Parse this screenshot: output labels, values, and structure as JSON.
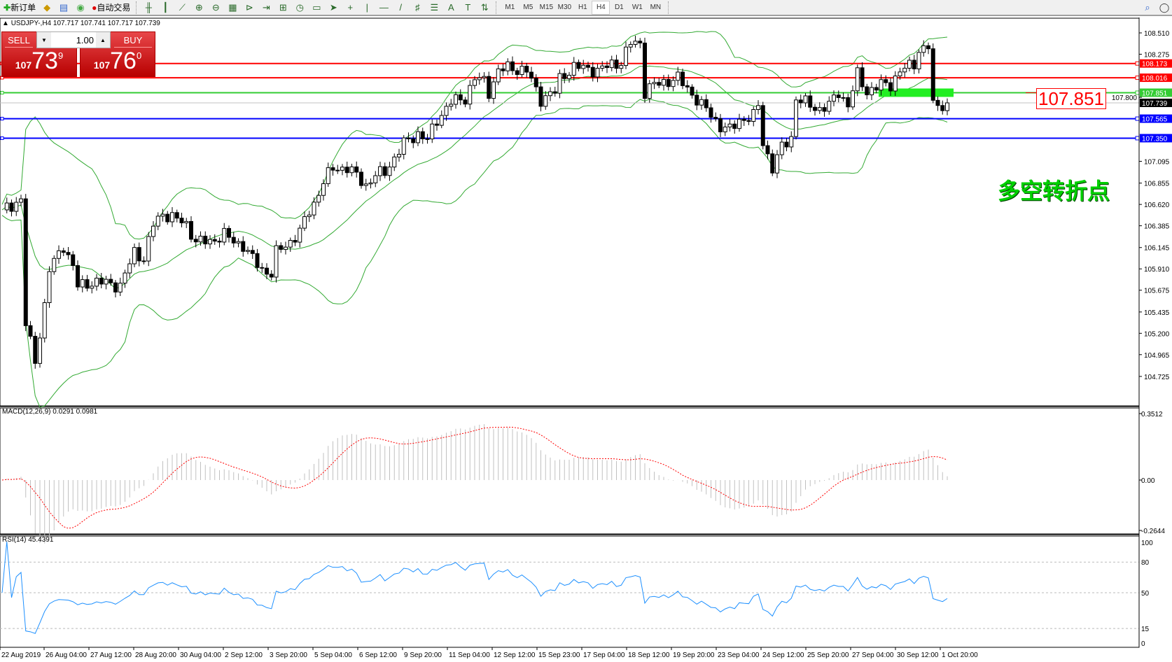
{
  "toolbar": {
    "new_order": "新订单",
    "auto_trading": "自动交易",
    "icons": [
      "bar-chart-icon",
      "candlestick-icon",
      "line-chart-icon",
      "zoom-in-icon",
      "zoom-out-icon",
      "tile-windows-icon",
      "chart-shift-icon",
      "autoscroll-icon",
      "indicators-icon",
      "periods-icon",
      "templates-icon",
      "cursor-icon",
      "crosshair-icon",
      "vertical-line-icon",
      "horizontal-line-icon",
      "trendline-icon",
      "fibonacci-icon",
      "fibo-fan-icon",
      "text-icon",
      "text-label-icon",
      "arrows-icon"
    ],
    "timeframes": [
      "M1",
      "M5",
      "M15",
      "M30",
      "H1",
      "H4",
      "D1",
      "W1",
      "MN"
    ],
    "active_timeframe": "H4"
  },
  "chart": {
    "symbol_line": "USDJPY-,H4  107.717 107.741 107.717 107.739",
    "annotation": "多空转折点",
    "big_price_label": "107.851"
  },
  "trade": {
    "sell_label": "SELL",
    "buy_label": "BUY",
    "lots": "1.00",
    "sell_small": "107",
    "sell_big": "73",
    "sell_sup": "9",
    "buy_small": "107",
    "buy_big": "76",
    "buy_sup": "0"
  },
  "macd": {
    "label": "MACD(12,26,9) 0.0291 0.0981",
    "ticks": [
      "0.3512",
      "0.00",
      "-0.2644"
    ]
  },
  "rsi": {
    "label": "RSI(14) 45.4391",
    "ticks": [
      "100",
      "80",
      "50",
      "15",
      "0"
    ]
  },
  "colors": {
    "resistance": "#ff0000",
    "pivot": "#33cc33",
    "support": "#0000ff",
    "bid": "#000000",
    "bands": "#33aa33",
    "rsi": "#1e90ff",
    "macd_signal": "#ff0000",
    "macd_hist": "#c0c0c0"
  },
  "chart_data": {
    "type": "candlestick",
    "price_ticks": [
      "108.510",
      "108.275",
      "107.800",
      "107.095",
      "106.855",
      "106.620",
      "106.385",
      "106.145",
      "105.910",
      "105.675",
      "105.435",
      "105.200",
      "104.965",
      "104.725"
    ],
    "levels": [
      {
        "price": 108.173,
        "label": "108.173",
        "kind": "resistance"
      },
      {
        "price": 108.016,
        "label": "108.016",
        "kind": "resistance"
      },
      {
        "price": 107.851,
        "label": "107.851",
        "kind": "pivot"
      },
      {
        "price": 107.739,
        "label": "107.739",
        "kind": "bid"
      },
      {
        "price": 107.565,
        "label": "107.565",
        "kind": "support"
      },
      {
        "price": 107.35,
        "label": "107.350",
        "kind": "support"
      }
    ],
    "time_labels": [
      "22 Aug 2019",
      "26 Aug 04:00",
      "27 Aug 12:00",
      "28 Aug 20:00",
      "30 Aug 04:00",
      "2 Sep 12:00",
      "3 Sep 20:00",
      "5 Sep 04:00",
      "6 Sep 12:00",
      "9 Sep 20:00",
      "11 Sep 04:00",
      "12 Sep 12:00",
      "15 Sep 23:00",
      "17 Sep 04:00",
      "18 Sep 12:00",
      "19 Sep 20:00",
      "23 Sep 04:00",
      "24 Sep 12:00",
      "25 Sep 20:00",
      "27 Sep 04:00",
      "30 Sep 12:00",
      "1 Oct 20:00"
    ],
    "indicators": [
      "Bollinger Bands",
      "MACD(12,26,9)",
      "RSI(14)"
    ],
    "close_keypoints": [
      [
        0,
        106.56
      ],
      [
        4,
        106.67
      ],
      [
        5,
        105.3
      ],
      [
        7,
        104.9
      ],
      [
        9,
        105.5
      ],
      [
        10,
        105.9
      ],
      [
        13,
        106.17
      ],
      [
        15,
        105.93
      ],
      [
        16,
        105.72
      ],
      [
        19,
        105.76
      ],
      [
        22,
        105.76
      ],
      [
        25,
        105.72
      ],
      [
        28,
        106.1
      ],
      [
        30,
        106.02
      ],
      [
        32,
        106.4
      ],
      [
        34,
        106.52
      ],
      [
        36,
        106.48
      ],
      [
        39,
        106.4
      ],
      [
        41,
        106.21
      ],
      [
        44,
        106.21
      ],
      [
        47,
        106.29
      ],
      [
        49,
        106.21
      ],
      [
        51,
        106.17
      ],
      [
        53,
        106.02
      ],
      [
        55,
        105.9
      ],
      [
        57,
        105.86
      ],
      [
        58,
        106.09
      ],
      [
        61,
        106.21
      ],
      [
        63,
        106.32
      ],
      [
        65,
        106.55
      ],
      [
        66,
        106.63
      ],
      [
        68,
        106.87
      ],
      [
        70,
        107.02
      ],
      [
        73,
        107.02
      ],
      [
        75,
        106.94
      ],
      [
        77,
        106.83
      ],
      [
        79,
        106.94
      ],
      [
        81,
        106.98
      ],
      [
        83,
        107.13
      ],
      [
        85,
        107.29
      ],
      [
        88,
        107.4
      ],
      [
        90,
        107.33
      ],
      [
        92,
        107.55
      ],
      [
        95,
        107.75
      ],
      [
        98,
        107.79
      ],
      [
        100,
        108.01
      ],
      [
        102,
        107.98
      ],
      [
        103,
        107.86
      ],
      [
        105,
        108.09
      ],
      [
        107,
        108.13
      ],
      [
        111,
        108.09
      ],
      [
        114,
        107.78
      ],
      [
        117,
        107.86
      ],
      [
        118,
        108.01
      ],
      [
        121,
        108.13
      ],
      [
        123,
        108.13
      ],
      [
        126,
        108.09
      ],
      [
        129,
        108.17
      ],
      [
        131,
        108.18
      ],
      [
        133,
        108.4
      ],
      [
        135,
        108.4
      ],
      [
        136,
        107.86
      ],
      [
        138,
        107.94
      ],
      [
        141,
        107.98
      ],
      [
        143,
        108.01
      ],
      [
        145,
        107.9
      ],
      [
        148,
        107.71
      ],
      [
        149,
        107.67
      ],
      [
        152,
        107.48
      ],
      [
        154,
        107.44
      ],
      [
        156,
        107.55
      ],
      [
        159,
        107.59
      ],
      [
        160,
        107.71
      ],
      [
        161,
        107.3
      ],
      [
        163,
        107.02
      ],
      [
        165,
        107.25
      ],
      [
        167,
        107.36
      ],
      [
        168,
        107.79
      ],
      [
        171,
        107.71
      ],
      [
        173,
        107.67
      ],
      [
        175,
        107.71
      ],
      [
        177,
        107.86
      ],
      [
        179,
        107.71
      ],
      [
        181,
        108.05
      ],
      [
        183,
        107.86
      ],
      [
        186,
        107.94
      ],
      [
        188,
        107.94
      ],
      [
        190,
        108.09
      ],
      [
        193,
        108.17
      ],
      [
        194,
        108.32
      ],
      [
        196,
        108.36
      ],
      [
        197,
        107.71
      ],
      [
        198,
        107.71
      ],
      [
        200,
        107.739
      ]
    ]
  }
}
